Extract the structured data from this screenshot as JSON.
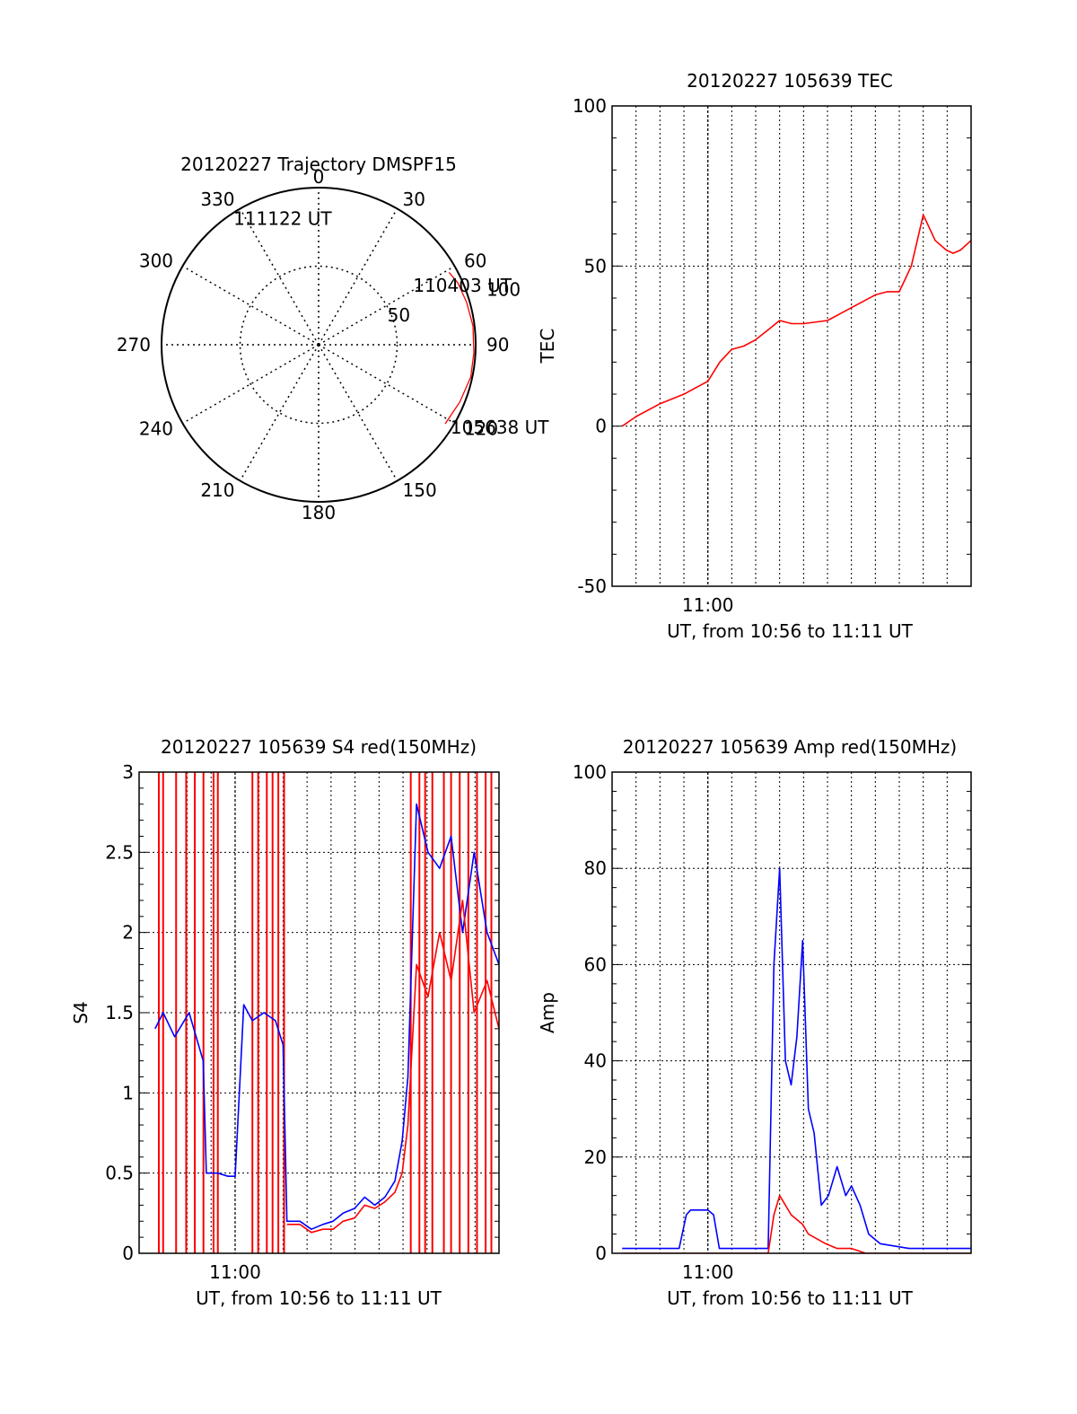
{
  "colors": {
    "red": "#ff0000",
    "blue": "#0000ff",
    "axis": "#000000",
    "grid": "#000000"
  },
  "chart_data": [
    {
      "type": "polar",
      "title": "20120227 Trajectory DMSPF15",
      "angle_labels": [
        "0",
        "30",
        "60",
        "90",
        "120",
        "150",
        "180",
        "210",
        "240",
        "270",
        "300",
        "330"
      ],
      "radial_labels": [
        "50",
        "100"
      ],
      "rlim": [
        0,
        100
      ],
      "grid": true,
      "series": [
        {
          "color": "red",
          "points": [
            [
              95,
              61
            ],
            [
              97,
              66
            ],
            [
              98,
              74
            ],
            [
              99,
              83
            ],
            [
              99,
              93
            ],
            [
              99,
              102
            ],
            [
              97,
              112
            ],
            [
              95,
              122
            ]
          ]
        }
      ],
      "annotations": [
        {
          "text": "111122 UT",
          "azimuth": 326,
          "zenith": 97
        },
        {
          "text": "110403 UT",
          "azimuth": 58,
          "zenith": 71
        },
        {
          "text": "105638 UT",
          "azimuth": 122,
          "zenith": 99
        }
      ]
    },
    {
      "type": "line",
      "title": "20120227 105639 TEC",
      "xlabel": "UT, from 10:56 to 11:11 UT",
      "ylabel": "TEC",
      "xlim": [
        10.9333,
        11.1833
      ],
      "ylim": [
        -50,
        100
      ],
      "yticks": [
        "-50",
        "0",
        "50",
        "100"
      ],
      "xticks": [
        "11:00"
      ],
      "grid": true,
      "series": [
        {
          "color": "red",
          "x": [
            10.9403,
            10.95,
            10.9667,
            10.9833,
            11.0,
            11.0083,
            11.0167,
            11.025,
            11.0333,
            11.0417,
            11.05,
            11.0583,
            11.0667,
            11.0833,
            11.0917,
            11.1,
            11.1083,
            11.1167,
            11.125,
            11.1333,
            11.1417,
            11.15,
            11.1583,
            11.166,
            11.1708,
            11.176,
            11.1833
          ],
          "y": [
            0,
            3,
            7,
            10,
            14,
            20,
            24,
            25,
            27,
            30,
            33,
            32,
            32,
            33,
            35,
            37,
            39,
            41,
            42,
            42,
            50,
            66,
            58,
            55,
            54,
            55,
            58
          ]
        }
      ]
    },
    {
      "type": "line",
      "title": "20120227 105639 S4 red(150MHz)",
      "xlabel": "UT, from 10:56 to 11:11 UT",
      "ylabel": "S4",
      "xlim": [
        10.9333,
        11.1833
      ],
      "ylim": [
        0,
        3
      ],
      "yticks": [
        "0",
        "0.5",
        "1",
        "1.5",
        "2",
        "2.5",
        "3"
      ],
      "xticks": [
        "11:00"
      ],
      "grid": true,
      "series": [
        {
          "color": "blue",
          "x": [
            10.9444,
            10.95,
            10.958,
            10.968,
            10.9778,
            10.98,
            10.988,
            10.995,
            11.0,
            11.006,
            11.012,
            11.02,
            11.028,
            11.0333,
            11.036,
            11.045,
            11.053,
            11.061,
            11.068,
            11.075,
            11.083,
            11.09,
            11.097,
            11.104,
            11.111,
            11.116,
            11.12,
            11.126,
            11.134,
            11.142,
            11.15,
            11.158,
            11.166,
            11.175,
            11.1833
          ],
          "y": [
            1.4,
            1.5,
            1.35,
            1.5,
            1.2,
            0.5,
            0.5,
            0.48,
            0.48,
            1.55,
            1.45,
            1.5,
            1.45,
            1.3,
            0.2,
            0.2,
            0.15,
            0.18,
            0.2,
            0.25,
            0.28,
            0.35,
            0.3,
            0.35,
            0.45,
            0.7,
            1.1,
            2.8,
            2.5,
            2.4,
            2.6,
            2.0,
            2.5,
            2.0,
            1.8
          ]
        },
        {
          "color": "red",
          "x": [
            11.036,
            11.045,
            11.053,
            11.061,
            11.068,
            11.075,
            11.083,
            11.09,
            11.097,
            11.104,
            11.111,
            11.116,
            11.12,
            11.126,
            11.134,
            11.142,
            11.15,
            11.158,
            11.166,
            11.175,
            11.1833
          ],
          "y": [
            0.18,
            0.18,
            0.13,
            0.15,
            0.15,
            0.2,
            0.22,
            0.3,
            0.28,
            0.32,
            0.38,
            0.5,
            0.8,
            1.8,
            1.6,
            2.0,
            1.7,
            2.2,
            1.5,
            1.7,
            1.4
          ]
        }
      ],
      "spikes": {
        "color": "red",
        "x": [
          10.947,
          10.95,
          10.959,
          10.966,
          10.972,
          10.978,
          10.985,
          10.988,
          11.012,
          11.016,
          11.022,
          11.026,
          11.03,
          11.034,
          11.122,
          11.128,
          11.132,
          11.137,
          11.145,
          11.15,
          11.156,
          11.162,
          11.168,
          11.174,
          11.178
        ]
      }
    },
    {
      "type": "line",
      "title": "20120227 105639 Amp red(150MHz)",
      "xlabel": "UT, from 10:56 to 11:11 UT",
      "ylabel": "Amp",
      "xlim": [
        10.9333,
        11.1833
      ],
      "ylim": [
        0,
        100
      ],
      "yticks": [
        "0",
        "20",
        "40",
        "60",
        "80",
        "100"
      ],
      "xticks": [
        "11:00"
      ],
      "grid": true,
      "series": [
        {
          "color": "blue",
          "x": [
            10.9403,
            10.96,
            10.98,
            10.985,
            10.988,
            11.0,
            11.004,
            11.008,
            11.02,
            11.03,
            11.042,
            11.046,
            11.05,
            11.054,
            11.058,
            11.062,
            11.066,
            11.07,
            11.074,
            11.079,
            11.084,
            11.09,
            11.096,
            11.1,
            11.106,
            11.112,
            11.12,
            11.14,
            11.16,
            11.1833
          ],
          "y": [
            1,
            1,
            1,
            8,
            9,
            9,
            8,
            1,
            1,
            1,
            1,
            60,
            80,
            40,
            35,
            45,
            65,
            30,
            25,
            10,
            12,
            18,
            12,
            14,
            10,
            4,
            2,
            1,
            1,
            1
          ]
        },
        {
          "color": "red",
          "x": [
            10.9403,
            11.042,
            11.046,
            11.05,
            11.054,
            11.058,
            11.062,
            11.066,
            11.07,
            11.076,
            11.082,
            11.09,
            11.1,
            11.11,
            11.1833
          ],
          "y": [
            0,
            0,
            8,
            12,
            10,
            8,
            7,
            6,
            4,
            3,
            2,
            1,
            1,
            0,
            0
          ]
        }
      ]
    }
  ]
}
